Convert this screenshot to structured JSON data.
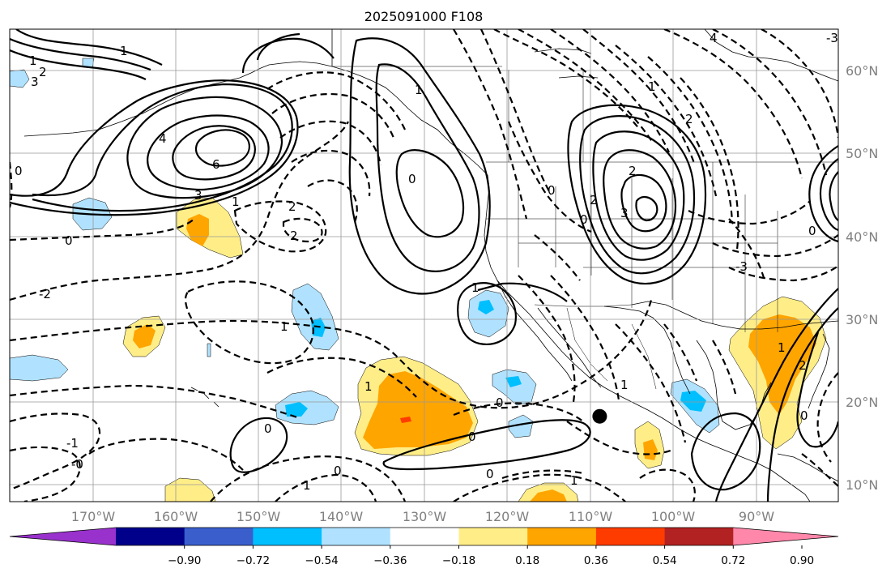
{
  "title": "2025091000 F108",
  "map": {
    "projection": "PlateCarree",
    "lon_range": [
      -180,
      -80
    ],
    "lat_range": [
      8,
      65
    ],
    "gridlines": true,
    "lon_labels": [
      "170°W",
      "160°W",
      "150°W",
      "140°W",
      "130°W",
      "120°W",
      "110°W",
      "100°W",
      "90°W"
    ],
    "lat_labels": [
      "10°N",
      "20°N",
      "30°N",
      "40°N",
      "50°N",
      "60°N"
    ],
    "marker": {
      "name": "black-dot",
      "lon": -108.8,
      "lat": 18.3
    }
  },
  "colorbar": {
    "extend": "both",
    "ticks": [
      "−0.90",
      "−0.72",
      "−0.54",
      "−0.36",
      "−0.18",
      "0.18",
      "0.36",
      "0.54",
      "0.72",
      "0.90"
    ],
    "colors": [
      "#9932cc",
      "#00008b",
      "#3a5fcd",
      "#00bfff",
      "#b0e2ff",
      "#ffffff",
      "#ffee88",
      "#ffa500",
      "#ff3c00",
      "#b22222",
      "#ff88aa"
    ]
  },
  "contour_labels": [
    "1",
    "3",
    "4",
    "6",
    "3",
    "1",
    "2",
    "2",
    "0",
    "2",
    "0",
    "1",
    "0",
    "4",
    "-3",
    "2",
    "3",
    "0",
    "2",
    "0",
    "2",
    "-3",
    "0",
    "1",
    "1",
    "1",
    "-2",
    "-1",
    "-0",
    "0",
    "0",
    "1",
    "1",
    "0",
    "0",
    "1",
    "1",
    "2",
    "1",
    "0",
    "0",
    "1"
  ]
}
